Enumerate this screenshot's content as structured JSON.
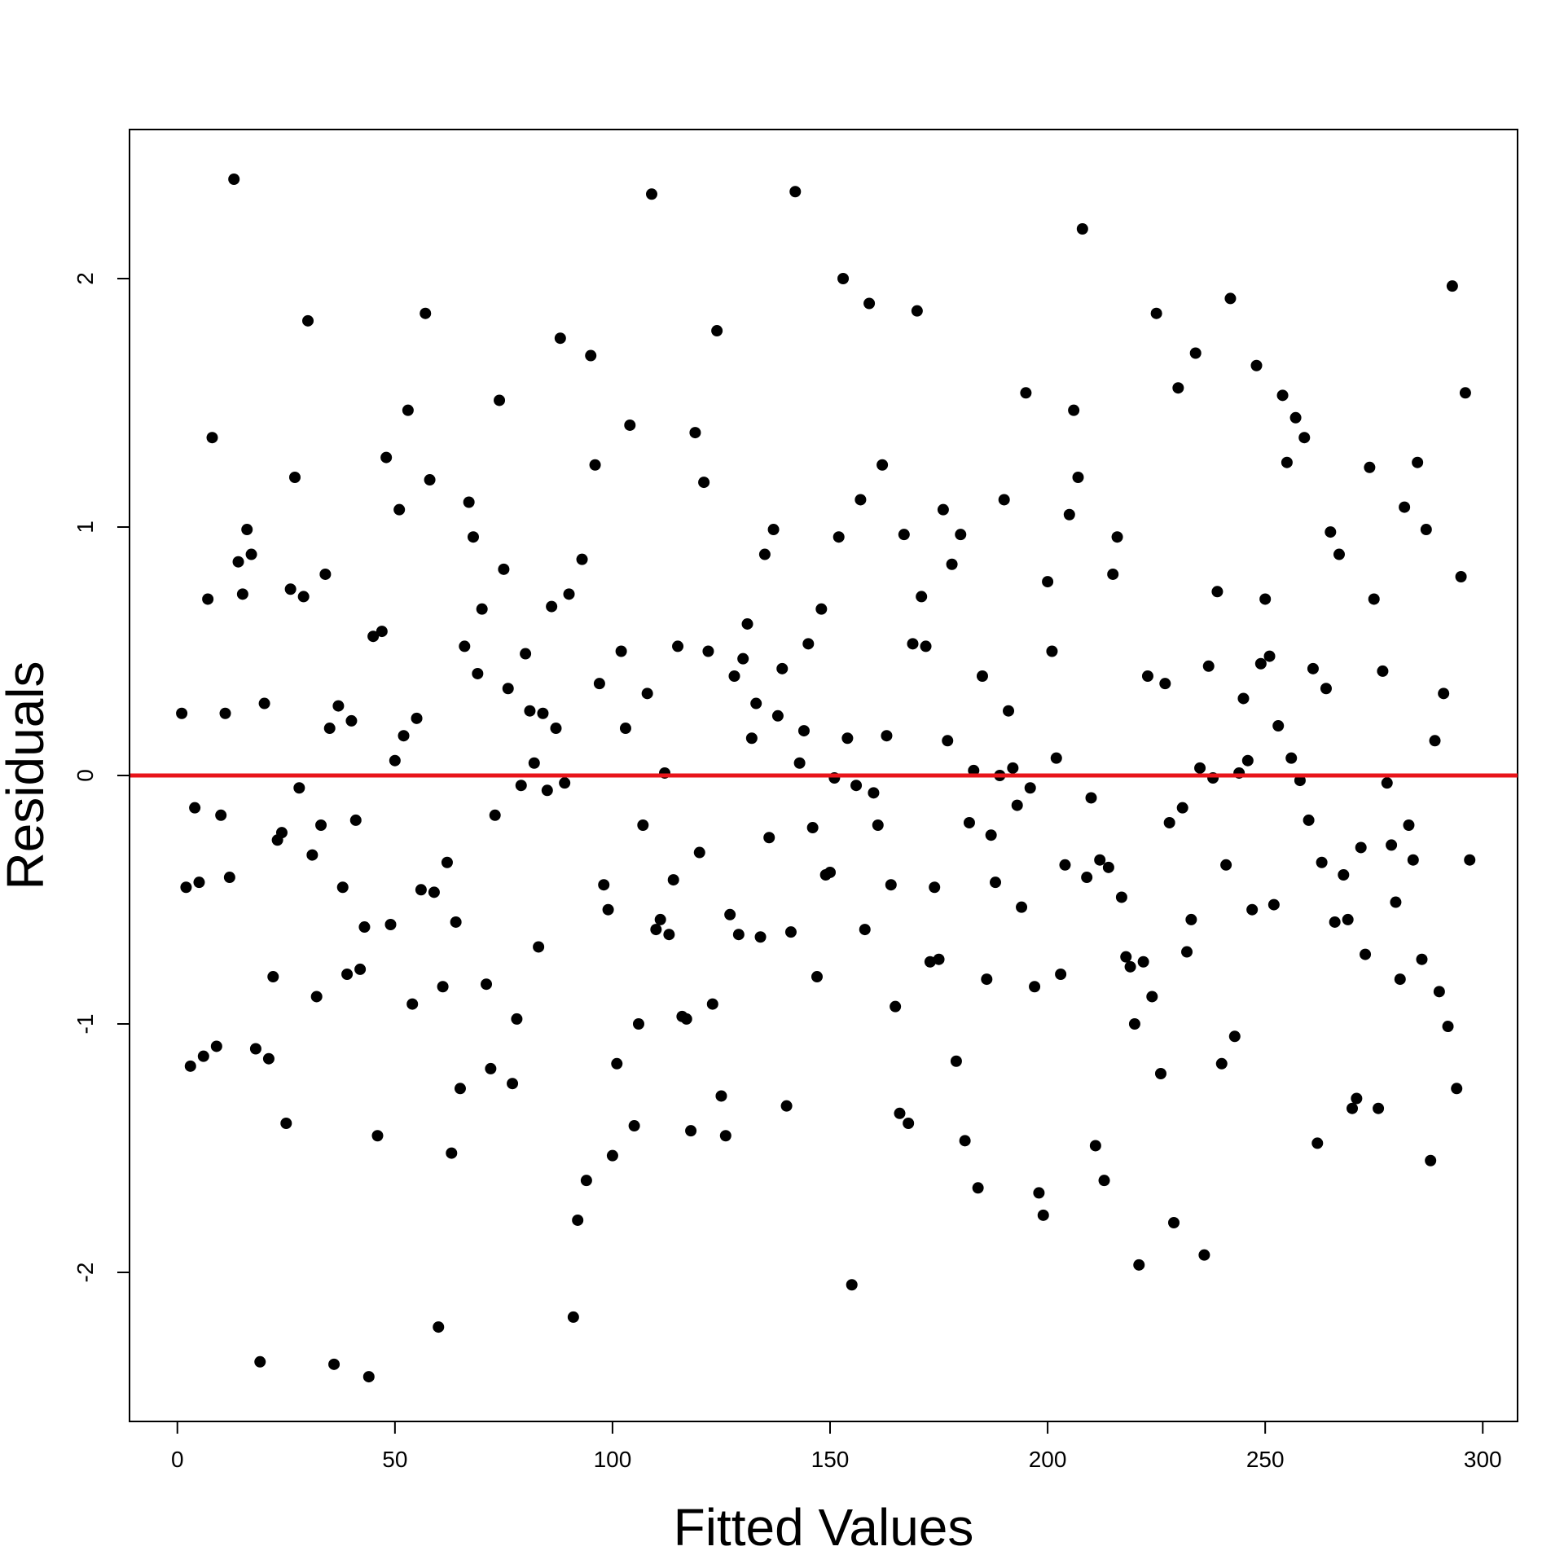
{
  "chart_data": {
    "type": "scatter",
    "title": "",
    "xlabel": "Fitted Values",
    "ylabel": "Residuals",
    "xlim": [
      -11,
      308
    ],
    "ylim": [
      -2.6,
      2.6
    ],
    "x_ticks": [
      0,
      50,
      100,
      150,
      200,
      250,
      300
    ],
    "y_ticks": [
      -2,
      -1,
      0,
      1,
      2
    ],
    "grid": false,
    "legend": "none",
    "point_color": "#000000",
    "reference_line": {
      "y": 0,
      "color": "#e8141a"
    },
    "points": [
      [
        1,
        0.25
      ],
      [
        2,
        -0.45
      ],
      [
        3,
        -1.17
      ],
      [
        4,
        -0.13
      ],
      [
        5,
        -0.43
      ],
      [
        6,
        -1.13
      ],
      [
        7,
        0.71
      ],
      [
        8,
        1.36
      ],
      [
        9,
        -1.09
      ],
      [
        10,
        -0.16
      ],
      [
        11,
        0.25
      ],
      [
        12,
        -0.41
      ],
      [
        13,
        2.4
      ],
      [
        14,
        0.86
      ],
      [
        15,
        0.73
      ],
      [
        16,
        0.99
      ],
      [
        17,
        0.89
      ],
      [
        18,
        -1.1
      ],
      [
        19,
        -2.36
      ],
      [
        20,
        0.29
      ],
      [
        21,
        -1.14
      ],
      [
        22,
        -0.81
      ],
      [
        23,
        -0.26
      ],
      [
        24,
        -0.23
      ],
      [
        25,
        -1.4
      ],
      [
        26,
        0.75
      ],
      [
        27,
        1.2
      ],
      [
        28,
        -0.05
      ],
      [
        29,
        0.72
      ],
      [
        30,
        1.83
      ],
      [
        31,
        -0.32
      ],
      [
        32,
        -0.89
      ],
      [
        33,
        -0.2
      ],
      [
        34,
        0.81
      ],
      [
        35,
        0.19
      ],
      [
        36,
        -2.37
      ],
      [
        37,
        0.28
      ],
      [
        38,
        -0.45
      ],
      [
        39,
        -0.8
      ],
      [
        40,
        0.22
      ],
      [
        41,
        -0.18
      ],
      [
        42,
        -0.78
      ],
      [
        43,
        -0.61
      ],
      [
        44,
        -2.42
      ],
      [
        45,
        0.56
      ],
      [
        46,
        -1.45
      ],
      [
        47,
        0.58
      ],
      [
        48,
        1.28
      ],
      [
        49,
        -0.6
      ],
      [
        50,
        0.06
      ],
      [
        51,
        1.07
      ],
      [
        52,
        0.16
      ],
      [
        53,
        1.47
      ],
      [
        54,
        -0.92
      ],
      [
        55,
        0.23
      ],
      [
        56,
        -0.46
      ],
      [
        57,
        1.86
      ],
      [
        58,
        1.19
      ],
      [
        59,
        -0.47
      ],
      [
        60,
        -2.22
      ],
      [
        61,
        -0.85
      ],
      [
        62,
        -0.35
      ],
      [
        63,
        -1.52
      ],
      [
        64,
        -0.59
      ],
      [
        65,
        -1.26
      ],
      [
        66,
        0.52
      ],
      [
        67,
        1.1
      ],
      [
        68,
        0.96
      ],
      [
        69,
        0.41
      ],
      [
        70,
        0.67
      ],
      [
        71,
        -0.84
      ],
      [
        72,
        -1.18
      ],
      [
        73,
        -0.16
      ],
      [
        74,
        1.51
      ],
      [
        75,
        0.83
      ],
      [
        76,
        0.35
      ],
      [
        77,
        -1.24
      ],
      [
        78,
        -0.98
      ],
      [
        79,
        -0.04
      ],
      [
        80,
        0.49
      ],
      [
        81,
        0.26
      ],
      [
        82,
        0.05
      ],
      [
        83,
        -0.69
      ],
      [
        84,
        0.25
      ],
      [
        85,
        -0.06
      ],
      [
        86,
        0.68
      ],
      [
        87,
        0.19
      ],
      [
        88,
        1.76
      ],
      [
        89,
        -0.03
      ],
      [
        90,
        0.73
      ],
      [
        91,
        -2.18
      ],
      [
        92,
        -1.79
      ],
      [
        93,
        0.87
      ],
      [
        94,
        -1.63
      ],
      [
        95,
        1.69
      ],
      [
        96,
        1.25
      ],
      [
        97,
        0.37
      ],
      [
        98,
        -0.44
      ],
      [
        99,
        -0.54
      ],
      [
        100,
        -1.53
      ],
      [
        101,
        -1.16
      ],
      [
        102,
        0.5
      ],
      [
        103,
        0.19
      ],
      [
        104,
        1.41
      ],
      [
        105,
        -1.41
      ],
      [
        106,
        -1.0
      ],
      [
        107,
        -0.2
      ],
      [
        108,
        0.33
      ],
      [
        109,
        2.34
      ],
      [
        110,
        -0.62
      ],
      [
        111,
        -0.58
      ],
      [
        112,
        0.01
      ],
      [
        113,
        -0.64
      ],
      [
        114,
        -0.42
      ],
      [
        115,
        0.52
      ],
      [
        116,
        -0.97
      ],
      [
        117,
        -0.98
      ],
      [
        118,
        -1.43
      ],
      [
        119,
        1.38
      ],
      [
        120,
        -0.31
      ],
      [
        121,
        1.18
      ],
      [
        122,
        0.5
      ],
      [
        123,
        -0.92
      ],
      [
        124,
        1.79
      ],
      [
        125,
        -1.29
      ],
      [
        126,
        -1.45
      ],
      [
        127,
        -0.56
      ],
      [
        128,
        0.4
      ],
      [
        129,
        -0.64
      ],
      [
        130,
        0.47
      ],
      [
        131,
        0.61
      ],
      [
        132,
        0.15
      ],
      [
        133,
        0.29
      ],
      [
        134,
        -0.65
      ],
      [
        135,
        0.89
      ],
      [
        136,
        -0.25
      ],
      [
        137,
        0.99
      ],
      [
        138,
        0.24
      ],
      [
        139,
        0.43
      ],
      [
        140,
        -1.33
      ],
      [
        141,
        -0.63
      ],
      [
        142,
        2.35
      ],
      [
        143,
        0.05
      ],
      [
        144,
        0.18
      ],
      [
        145,
        0.53
      ],
      [
        146,
        -0.21
      ],
      [
        147,
        -0.81
      ],
      [
        148,
        0.67
      ],
      [
        149,
        -0.4
      ],
      [
        150,
        -0.39
      ],
      [
        151,
        -0.01
      ],
      [
        152,
        0.96
      ],
      [
        153,
        2.0
      ],
      [
        154,
        0.15
      ],
      [
        155,
        -2.05
      ],
      [
        156,
        -0.04
      ],
      [
        157,
        1.11
      ],
      [
        158,
        -0.62
      ],
      [
        159,
        1.9
      ],
      [
        160,
        -0.07
      ],
      [
        161,
        -0.2
      ],
      [
        162,
        1.25
      ],
      [
        163,
        0.16
      ],
      [
        164,
        -0.44
      ],
      [
        165,
        -0.93
      ],
      [
        166,
        -1.36
      ],
      [
        167,
        0.97
      ],
      [
        168,
        -1.4
      ],
      [
        169,
        0.53
      ],
      [
        170,
        1.87
      ],
      [
        171,
        0.72
      ],
      [
        172,
        0.52
      ],
      [
        173,
        -0.75
      ],
      [
        174,
        -0.45
      ],
      [
        175,
        -0.74
      ],
      [
        176,
        1.07
      ],
      [
        177,
        0.14
      ],
      [
        178,
        0.85
      ],
      [
        179,
        -1.15
      ],
      [
        180,
        0.97
      ],
      [
        181,
        -1.47
      ],
      [
        182,
        -0.19
      ],
      [
        183,
        0.02
      ],
      [
        184,
        -1.66
      ],
      [
        185,
        0.4
      ],
      [
        186,
        -0.82
      ],
      [
        187,
        -0.24
      ],
      [
        188,
        -0.43
      ],
      [
        189,
        0.0
      ],
      [
        190,
        1.11
      ],
      [
        191,
        0.26
      ],
      [
        192,
        0.03
      ],
      [
        193,
        -0.12
      ],
      [
        194,
        -0.53
      ],
      [
        195,
        1.54
      ],
      [
        196,
        -0.05
      ],
      [
        197,
        -0.85
      ],
      [
        198,
        -1.68
      ],
      [
        199,
        -1.77
      ],
      [
        200,
        0.78
      ],
      [
        201,
        0.5
      ],
      [
        202,
        0.07
      ],
      [
        203,
        -0.8
      ],
      [
        204,
        -0.36
      ],
      [
        205,
        1.05
      ],
      [
        206,
        1.47
      ],
      [
        207,
        1.2
      ],
      [
        208,
        2.2
      ],
      [
        209,
        -0.41
      ],
      [
        210,
        -0.09
      ],
      [
        211,
        -1.49
      ],
      [
        212,
        -0.34
      ],
      [
        213,
        -1.63
      ],
      [
        214,
        -0.37
      ],
      [
        215,
        0.81
      ],
      [
        216,
        0.96
      ],
      [
        217,
        -0.49
      ],
      [
        218,
        -0.73
      ],
      [
        219,
        -0.77
      ],
      [
        220,
        -1.0
      ],
      [
        221,
        -1.97
      ],
      [
        222,
        -0.75
      ],
      [
        223,
        0.4
      ],
      [
        224,
        -0.89
      ],
      [
        225,
        1.86
      ],
      [
        226,
        -1.2
      ],
      [
        227,
        0.37
      ],
      [
        228,
        -0.19
      ],
      [
        229,
        -1.8
      ],
      [
        230,
        1.56
      ],
      [
        231,
        -0.13
      ],
      [
        232,
        -0.71
      ],
      [
        233,
        -0.58
      ],
      [
        234,
        1.7
      ],
      [
        235,
        0.03
      ],
      [
        236,
        -1.93
      ],
      [
        237,
        0.44
      ],
      [
        238,
        -0.01
      ],
      [
        239,
        0.74
      ],
      [
        240,
        -1.16
      ],
      [
        241,
        -0.36
      ],
      [
        242,
        1.92
      ],
      [
        243,
        -1.05
      ],
      [
        244,
        0.01
      ],
      [
        245,
        0.31
      ],
      [
        246,
        0.06
      ],
      [
        247,
        -0.54
      ],
      [
        248,
        1.65
      ],
      [
        249,
        0.45
      ],
      [
        250,
        0.71
      ],
      [
        251,
        0.48
      ],
      [
        252,
        -0.52
      ],
      [
        253,
        0.2
      ],
      [
        254,
        1.53
      ],
      [
        255,
        1.26
      ],
      [
        256,
        0.07
      ],
      [
        257,
        1.44
      ],
      [
        258,
        -0.02
      ],
      [
        259,
        1.36
      ],
      [
        260,
        -0.18
      ],
      [
        261,
        0.43
      ],
      [
        262,
        -1.48
      ],
      [
        263,
        -0.35
      ],
      [
        264,
        0.35
      ],
      [
        265,
        0.98
      ],
      [
        266,
        -0.59
      ],
      [
        267,
        0.89
      ],
      [
        268,
        -0.4
      ],
      [
        269,
        -0.58
      ],
      [
        270,
        -1.34
      ],
      [
        271,
        -1.3
      ],
      [
        272,
        -0.29
      ],
      [
        273,
        -0.72
      ],
      [
        274,
        1.24
      ],
      [
        275,
        0.71
      ],
      [
        276,
        -1.34
      ],
      [
        277,
        0.42
      ],
      [
        278,
        -0.03
      ],
      [
        279,
        -0.28
      ],
      [
        280,
        -0.51
      ],
      [
        281,
        -0.82
      ],
      [
        282,
        1.08
      ],
      [
        283,
        -0.2
      ],
      [
        284,
        -0.34
      ],
      [
        285,
        1.26
      ],
      [
        286,
        -0.74
      ],
      [
        287,
        0.99
      ],
      [
        288,
        -1.55
      ],
      [
        289,
        0.14
      ],
      [
        290,
        -0.87
      ],
      [
        291,
        0.33
      ],
      [
        292,
        -1.01
      ],
      [
        293,
        1.97
      ],
      [
        294,
        -1.26
      ],
      [
        295,
        0.8
      ],
      [
        296,
        1.54
      ],
      [
        297,
        -0.34
      ]
    ]
  }
}
